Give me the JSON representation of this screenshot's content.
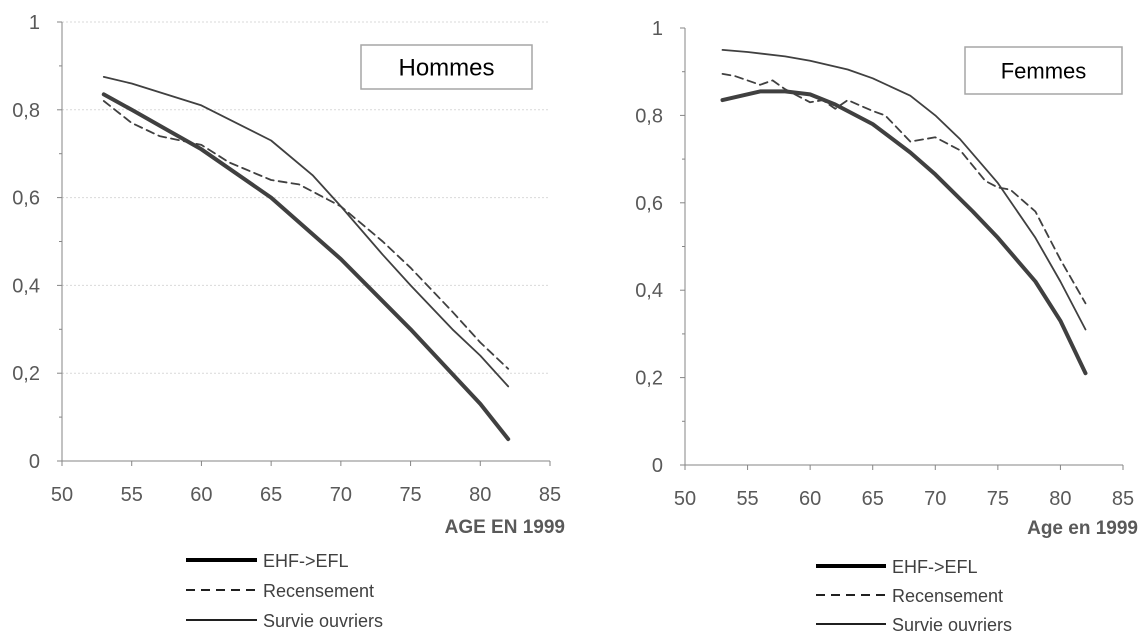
{
  "chart_data": [
    {
      "type": "line",
      "title": "Hommes",
      "xlabel": "AGE EN 1999",
      "ylabel": "",
      "xlim": [
        50,
        85
      ],
      "ylim": [
        0,
        1
      ],
      "x_ticks": [
        "50",
        "55",
        "60",
        "65",
        "70",
        "75",
        "80",
        "85"
      ],
      "y_ticks": [
        "0",
        "0,2",
        "0,4",
        "0,6",
        "0,8",
        "1"
      ],
      "grid": "horizontal dotted",
      "legend_position": "bottom",
      "series": [
        {
          "name": "EHF->EFL",
          "style": "thick-solid",
          "x": [
            53,
            55,
            60,
            65,
            70,
            75,
            80,
            82
          ],
          "y": [
            0.835,
            0.8,
            0.71,
            0.6,
            0.46,
            0.3,
            0.13,
            0.05
          ]
        },
        {
          "name": "Recensement",
          "style": "dashed",
          "x": [
            53,
            55,
            57,
            60,
            62,
            65,
            67,
            70,
            73,
            75,
            78,
            80,
            82
          ],
          "y": [
            0.82,
            0.77,
            0.74,
            0.72,
            0.68,
            0.64,
            0.63,
            0.58,
            0.5,
            0.44,
            0.34,
            0.27,
            0.21
          ]
        },
        {
          "name": "Survie ouvriers",
          "style": "thin-solid",
          "x": [
            53,
            55,
            60,
            65,
            68,
            70,
            73,
            75,
            78,
            80,
            82
          ],
          "y": [
            0.875,
            0.86,
            0.81,
            0.73,
            0.65,
            0.58,
            0.47,
            0.4,
            0.3,
            0.24,
            0.17
          ]
        }
      ]
    },
    {
      "type": "line",
      "title": "Femmes",
      "xlabel": "Age en 1999",
      "ylabel": "",
      "xlim": [
        50,
        85
      ],
      "ylim": [
        0,
        1
      ],
      "x_ticks": [
        "50",
        "55",
        "60",
        "65",
        "70",
        "75",
        "80",
        "85"
      ],
      "y_ticks": [
        "0",
        "0,2",
        "0,4",
        "0,6",
        "0,8",
        "1"
      ],
      "grid": "none",
      "legend_position": "bottom",
      "series": [
        {
          "name": "EHF->EFL",
          "style": "thick-solid",
          "x": [
            53,
            56,
            58,
            60,
            62,
            65,
            68,
            70,
            73,
            75,
            78,
            80,
            82
          ],
          "y": [
            0.835,
            0.855,
            0.855,
            0.848,
            0.825,
            0.78,
            0.715,
            0.665,
            0.58,
            0.52,
            0.42,
            0.33,
            0.21
          ]
        },
        {
          "name": "Recensement",
          "style": "dashed",
          "x": [
            53,
            54,
            56,
            57,
            58,
            60,
            61,
            62,
            63,
            65,
            66,
            68,
            70,
            72,
            74,
            75,
            76,
            78,
            80,
            82
          ],
          "y": [
            0.895,
            0.89,
            0.87,
            0.88,
            0.86,
            0.83,
            0.835,
            0.815,
            0.835,
            0.81,
            0.8,
            0.74,
            0.75,
            0.72,
            0.65,
            0.635,
            0.63,
            0.58,
            0.47,
            0.37
          ]
        },
        {
          "name": "Survie ouvriers",
          "style": "thin-solid",
          "x": [
            53,
            55,
            58,
            60,
            63,
            65,
            68,
            70,
            72,
            75,
            78,
            80,
            82
          ],
          "y": [
            0.95,
            0.945,
            0.935,
            0.925,
            0.905,
            0.885,
            0.845,
            0.8,
            0.745,
            0.645,
            0.52,
            0.42,
            0.31
          ]
        }
      ]
    }
  ]
}
